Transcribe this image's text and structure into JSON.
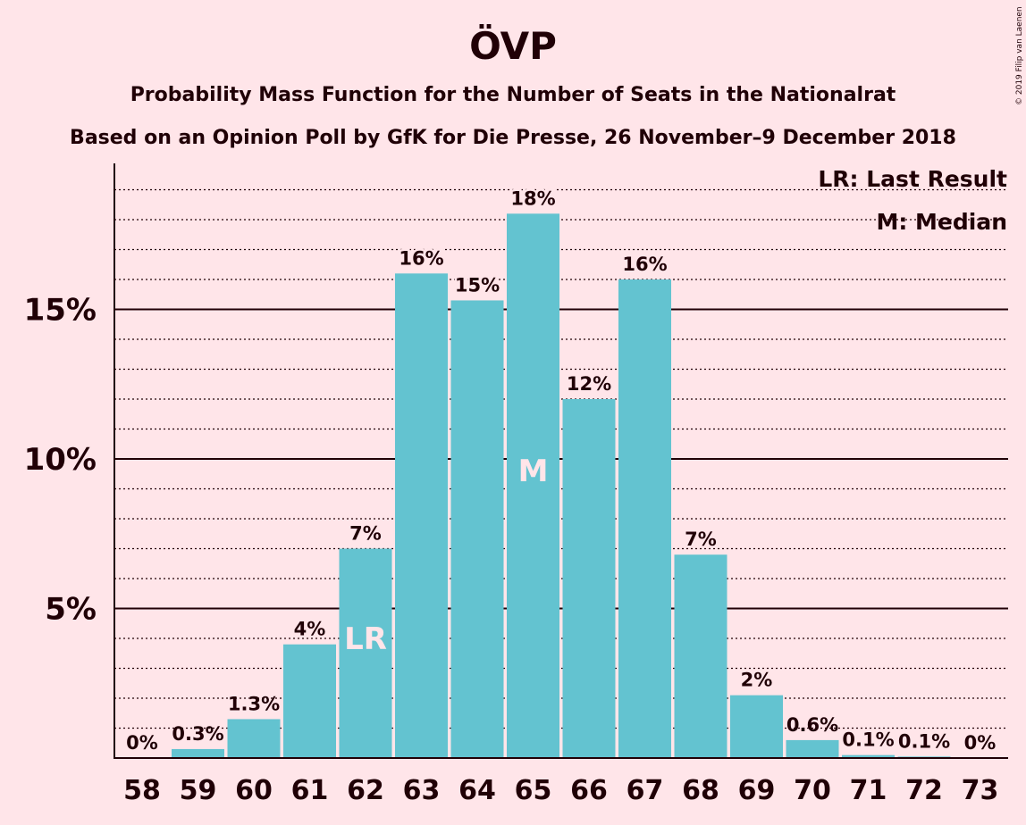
{
  "header": {
    "title": "ÖVP",
    "subtitle1": "Probability Mass Function for the Number of Seats in the Nationalrat",
    "subtitle2": "Based on an Opinion Poll by GfK for Die Presse, 26 November–9 December 2018"
  },
  "legend": {
    "last_result": "LR: Last Result",
    "median": "M: Median"
  },
  "copyright": "© 2019 Filip van Laenen",
  "colors": {
    "background": "#FFE5E9",
    "bar": "#63C3D0",
    "text": "#200006"
  },
  "chart_data": {
    "type": "bar",
    "categories": [
      "58",
      "59",
      "60",
      "61",
      "62",
      "63",
      "64",
      "65",
      "66",
      "67",
      "68",
      "69",
      "70",
      "71",
      "72",
      "73"
    ],
    "values": [
      0,
      0.3,
      1.3,
      3.8,
      7.0,
      16.2,
      15.3,
      18.2,
      12.0,
      16.0,
      6.8,
      2.1,
      0.6,
      0.1,
      0.05,
      0
    ],
    "labels": [
      "0%",
      "0.3%",
      "1.3%",
      "4%",
      "7%",
      "16%",
      "15%",
      "18%",
      "12%",
      "16%",
      "7%",
      "2%",
      "0.6%",
      "0.1%",
      "0.1%",
      "0%"
    ],
    "yticks": [
      5,
      10,
      15
    ],
    "ytick_labels": [
      "5%",
      "10%",
      "15%"
    ],
    "ylim": [
      0,
      20
    ],
    "minor_grid_step": 1,
    "markers": [
      {
        "category": "62",
        "text": "LR"
      },
      {
        "category": "65",
        "text": "M"
      }
    ]
  }
}
